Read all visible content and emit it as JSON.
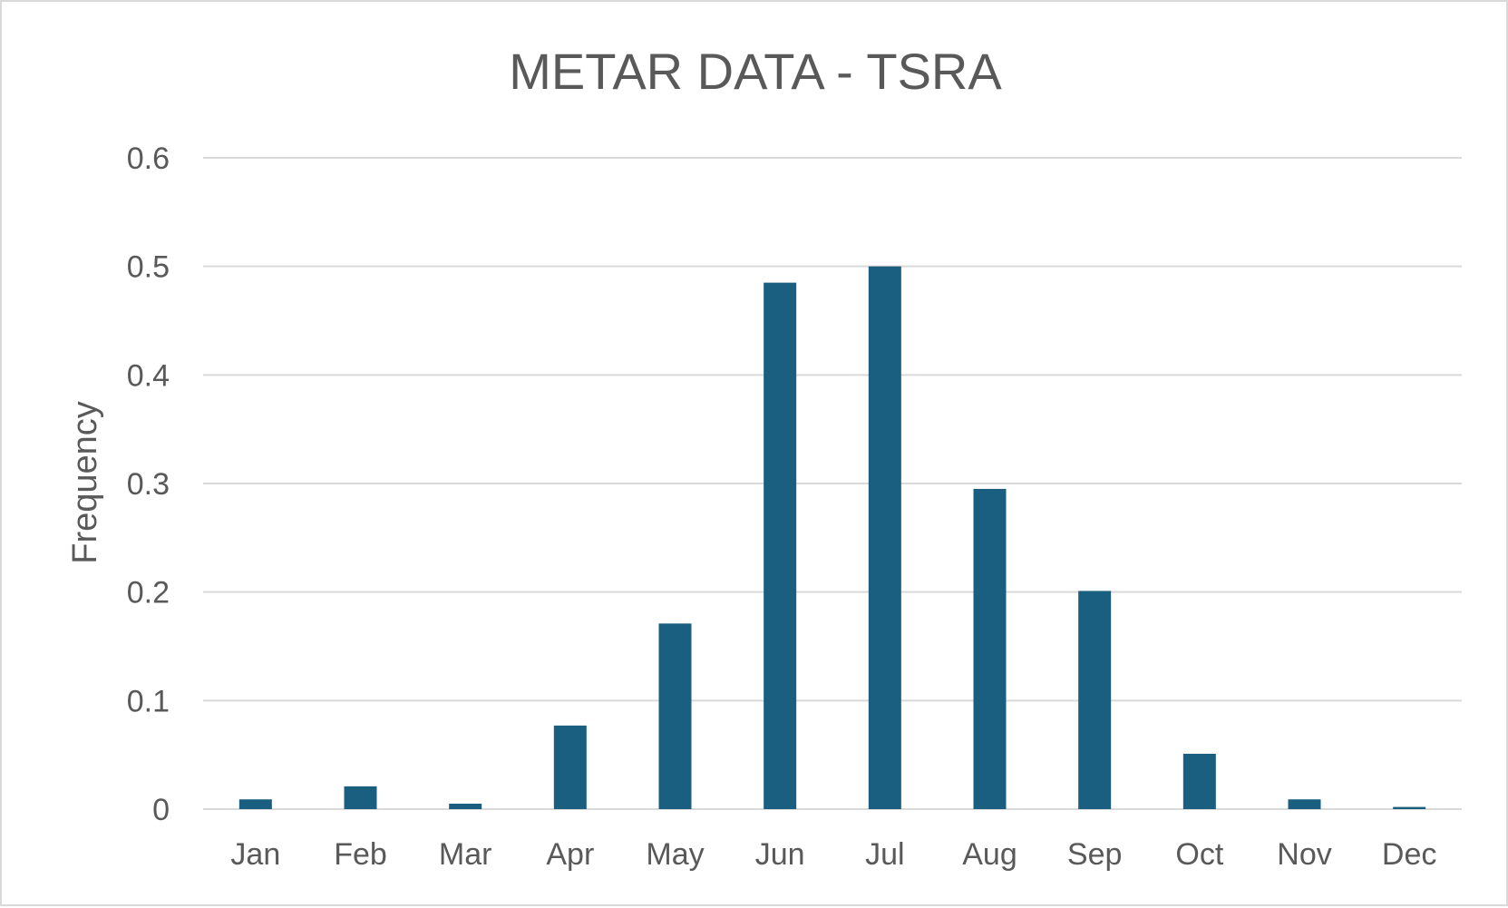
{
  "chart_data": {
    "type": "bar",
    "title": "METAR DATA - TSRA",
    "xlabel": "",
    "ylabel": "Frequency",
    "categories": [
      "Jan",
      "Feb",
      "Mar",
      "Apr",
      "May",
      "Jun",
      "Jul",
      "Aug",
      "Sep",
      "Oct",
      "Nov",
      "Dec"
    ],
    "values": [
      0.009,
      0.021,
      0.005,
      0.077,
      0.171,
      0.485,
      0.5,
      0.295,
      0.201,
      0.051,
      0.009,
      0.002
    ],
    "ylim": [
      0,
      0.6
    ],
    "yticks": [
      "0",
      "0.1",
      "0.2",
      "0.3",
      "0.4",
      "0.5",
      "0.6"
    ],
    "grid": true,
    "legend": "none",
    "colors": {
      "bar": "#1a5e80",
      "grid": "#d9d9d9",
      "text": "#595959"
    }
  }
}
